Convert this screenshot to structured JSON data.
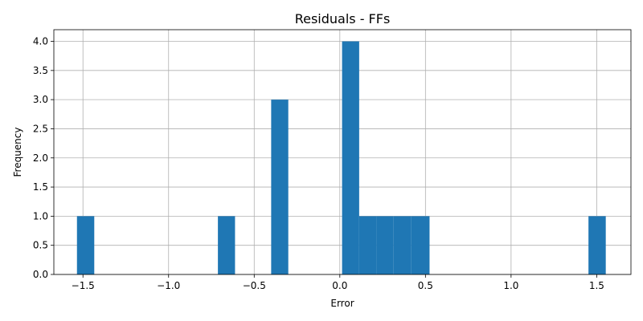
{
  "chart_data": {
    "type": "bar",
    "title": "Residuals - FFs",
    "xlabel": "Error",
    "ylabel": "Frequency",
    "xlim": [
      -1.67,
      1.7
    ],
    "ylim": [
      0,
      4.2
    ],
    "grid": true,
    "bar_color": "#1f77b4",
    "x_ticks": [
      -1.5,
      -1.0,
      -0.5,
      0.0,
      0.5,
      1.0,
      1.5
    ],
    "x_tick_labels": [
      "−1.5",
      "−1.0",
      "−0.5",
      "0.0",
      "0.5",
      "1.0",
      "1.5"
    ],
    "y_ticks": [
      0.0,
      0.5,
      1.0,
      1.5,
      2.0,
      2.5,
      3.0,
      3.5,
      4.0
    ],
    "y_tick_labels": [
      "0.0",
      "0.5",
      "1.0",
      "1.5",
      "2.0",
      "2.5",
      "3.0",
      "3.5",
      "4.0"
    ],
    "bins": [
      {
        "x0": -1.535,
        "x1": -1.434,
        "value": 1
      },
      {
        "x0": -0.712,
        "x1": -0.612,
        "value": 1
      },
      {
        "x0": -0.401,
        "x1": -0.301,
        "value": 3
      },
      {
        "x0": 0.013,
        "x1": 0.113,
        "value": 4
      },
      {
        "x0": 0.113,
        "x1": 0.214,
        "value": 1
      },
      {
        "x0": 0.214,
        "x1": 0.314,
        "value": 1
      },
      {
        "x0": 0.314,
        "x1": 0.415,
        "value": 1
      },
      {
        "x0": 0.415,
        "x1": 0.524,
        "value": 1
      },
      {
        "x0": 1.452,
        "x1": 1.553,
        "value": 1
      }
    ]
  }
}
